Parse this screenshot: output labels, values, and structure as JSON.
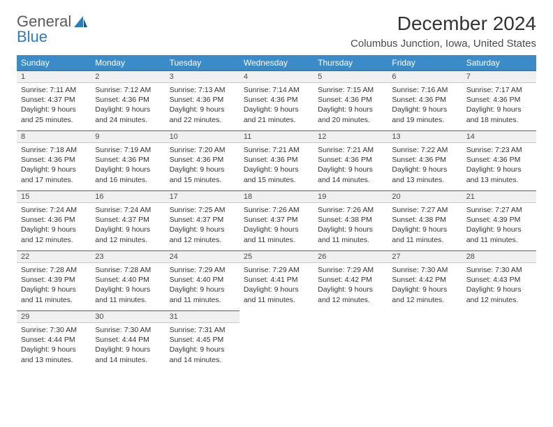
{
  "brand": {
    "part1": "General",
    "part2": "Blue"
  },
  "header": {
    "month": "December 2024",
    "location": "Columbus Junction, Iowa, United States"
  },
  "colors": {
    "header_bg": "#3b8bc9",
    "header_text": "#ffffff",
    "daynum_bg": "#f0f0f0",
    "daynum_border_top": "#2f6ea5",
    "text": "#333333",
    "brand_blue": "#2a7dc0"
  },
  "weekdays": [
    "Sunday",
    "Monday",
    "Tuesday",
    "Wednesday",
    "Thursday",
    "Friday",
    "Saturday"
  ],
  "weeks": [
    [
      {
        "n": "1",
        "sr": "7:11 AM",
        "ss": "4:37 PM",
        "dl": "9 hours and 25 minutes."
      },
      {
        "n": "2",
        "sr": "7:12 AM",
        "ss": "4:36 PM",
        "dl": "9 hours and 24 minutes."
      },
      {
        "n": "3",
        "sr": "7:13 AM",
        "ss": "4:36 PM",
        "dl": "9 hours and 22 minutes."
      },
      {
        "n": "4",
        "sr": "7:14 AM",
        "ss": "4:36 PM",
        "dl": "9 hours and 21 minutes."
      },
      {
        "n": "5",
        "sr": "7:15 AM",
        "ss": "4:36 PM",
        "dl": "9 hours and 20 minutes."
      },
      {
        "n": "6",
        "sr": "7:16 AM",
        "ss": "4:36 PM",
        "dl": "9 hours and 19 minutes."
      },
      {
        "n": "7",
        "sr": "7:17 AM",
        "ss": "4:36 PM",
        "dl": "9 hours and 18 minutes."
      }
    ],
    [
      {
        "n": "8",
        "sr": "7:18 AM",
        "ss": "4:36 PM",
        "dl": "9 hours and 17 minutes."
      },
      {
        "n": "9",
        "sr": "7:19 AM",
        "ss": "4:36 PM",
        "dl": "9 hours and 16 minutes."
      },
      {
        "n": "10",
        "sr": "7:20 AM",
        "ss": "4:36 PM",
        "dl": "9 hours and 15 minutes."
      },
      {
        "n": "11",
        "sr": "7:21 AM",
        "ss": "4:36 PM",
        "dl": "9 hours and 15 minutes."
      },
      {
        "n": "12",
        "sr": "7:21 AM",
        "ss": "4:36 PM",
        "dl": "9 hours and 14 minutes."
      },
      {
        "n": "13",
        "sr": "7:22 AM",
        "ss": "4:36 PM",
        "dl": "9 hours and 13 minutes."
      },
      {
        "n": "14",
        "sr": "7:23 AM",
        "ss": "4:36 PM",
        "dl": "9 hours and 13 minutes."
      }
    ],
    [
      {
        "n": "15",
        "sr": "7:24 AM",
        "ss": "4:36 PM",
        "dl": "9 hours and 12 minutes."
      },
      {
        "n": "16",
        "sr": "7:24 AM",
        "ss": "4:37 PM",
        "dl": "9 hours and 12 minutes."
      },
      {
        "n": "17",
        "sr": "7:25 AM",
        "ss": "4:37 PM",
        "dl": "9 hours and 12 minutes."
      },
      {
        "n": "18",
        "sr": "7:26 AM",
        "ss": "4:37 PM",
        "dl": "9 hours and 11 minutes."
      },
      {
        "n": "19",
        "sr": "7:26 AM",
        "ss": "4:38 PM",
        "dl": "9 hours and 11 minutes."
      },
      {
        "n": "20",
        "sr": "7:27 AM",
        "ss": "4:38 PM",
        "dl": "9 hours and 11 minutes."
      },
      {
        "n": "21",
        "sr": "7:27 AM",
        "ss": "4:39 PM",
        "dl": "9 hours and 11 minutes."
      }
    ],
    [
      {
        "n": "22",
        "sr": "7:28 AM",
        "ss": "4:39 PM",
        "dl": "9 hours and 11 minutes."
      },
      {
        "n": "23",
        "sr": "7:28 AM",
        "ss": "4:40 PM",
        "dl": "9 hours and 11 minutes."
      },
      {
        "n": "24",
        "sr": "7:29 AM",
        "ss": "4:40 PM",
        "dl": "9 hours and 11 minutes."
      },
      {
        "n": "25",
        "sr": "7:29 AM",
        "ss": "4:41 PM",
        "dl": "9 hours and 11 minutes."
      },
      {
        "n": "26",
        "sr": "7:29 AM",
        "ss": "4:42 PM",
        "dl": "9 hours and 12 minutes."
      },
      {
        "n": "27",
        "sr": "7:30 AM",
        "ss": "4:42 PM",
        "dl": "9 hours and 12 minutes."
      },
      {
        "n": "28",
        "sr": "7:30 AM",
        "ss": "4:43 PM",
        "dl": "9 hours and 12 minutes."
      }
    ],
    [
      {
        "n": "29",
        "sr": "7:30 AM",
        "ss": "4:44 PM",
        "dl": "9 hours and 13 minutes."
      },
      {
        "n": "30",
        "sr": "7:30 AM",
        "ss": "4:44 PM",
        "dl": "9 hours and 14 minutes."
      },
      {
        "n": "31",
        "sr": "7:31 AM",
        "ss": "4:45 PM",
        "dl": "9 hours and 14 minutes."
      },
      null,
      null,
      null,
      null
    ]
  ],
  "labels": {
    "sunrise": "Sunrise:",
    "sunset": "Sunset:",
    "daylight": "Daylight:"
  }
}
